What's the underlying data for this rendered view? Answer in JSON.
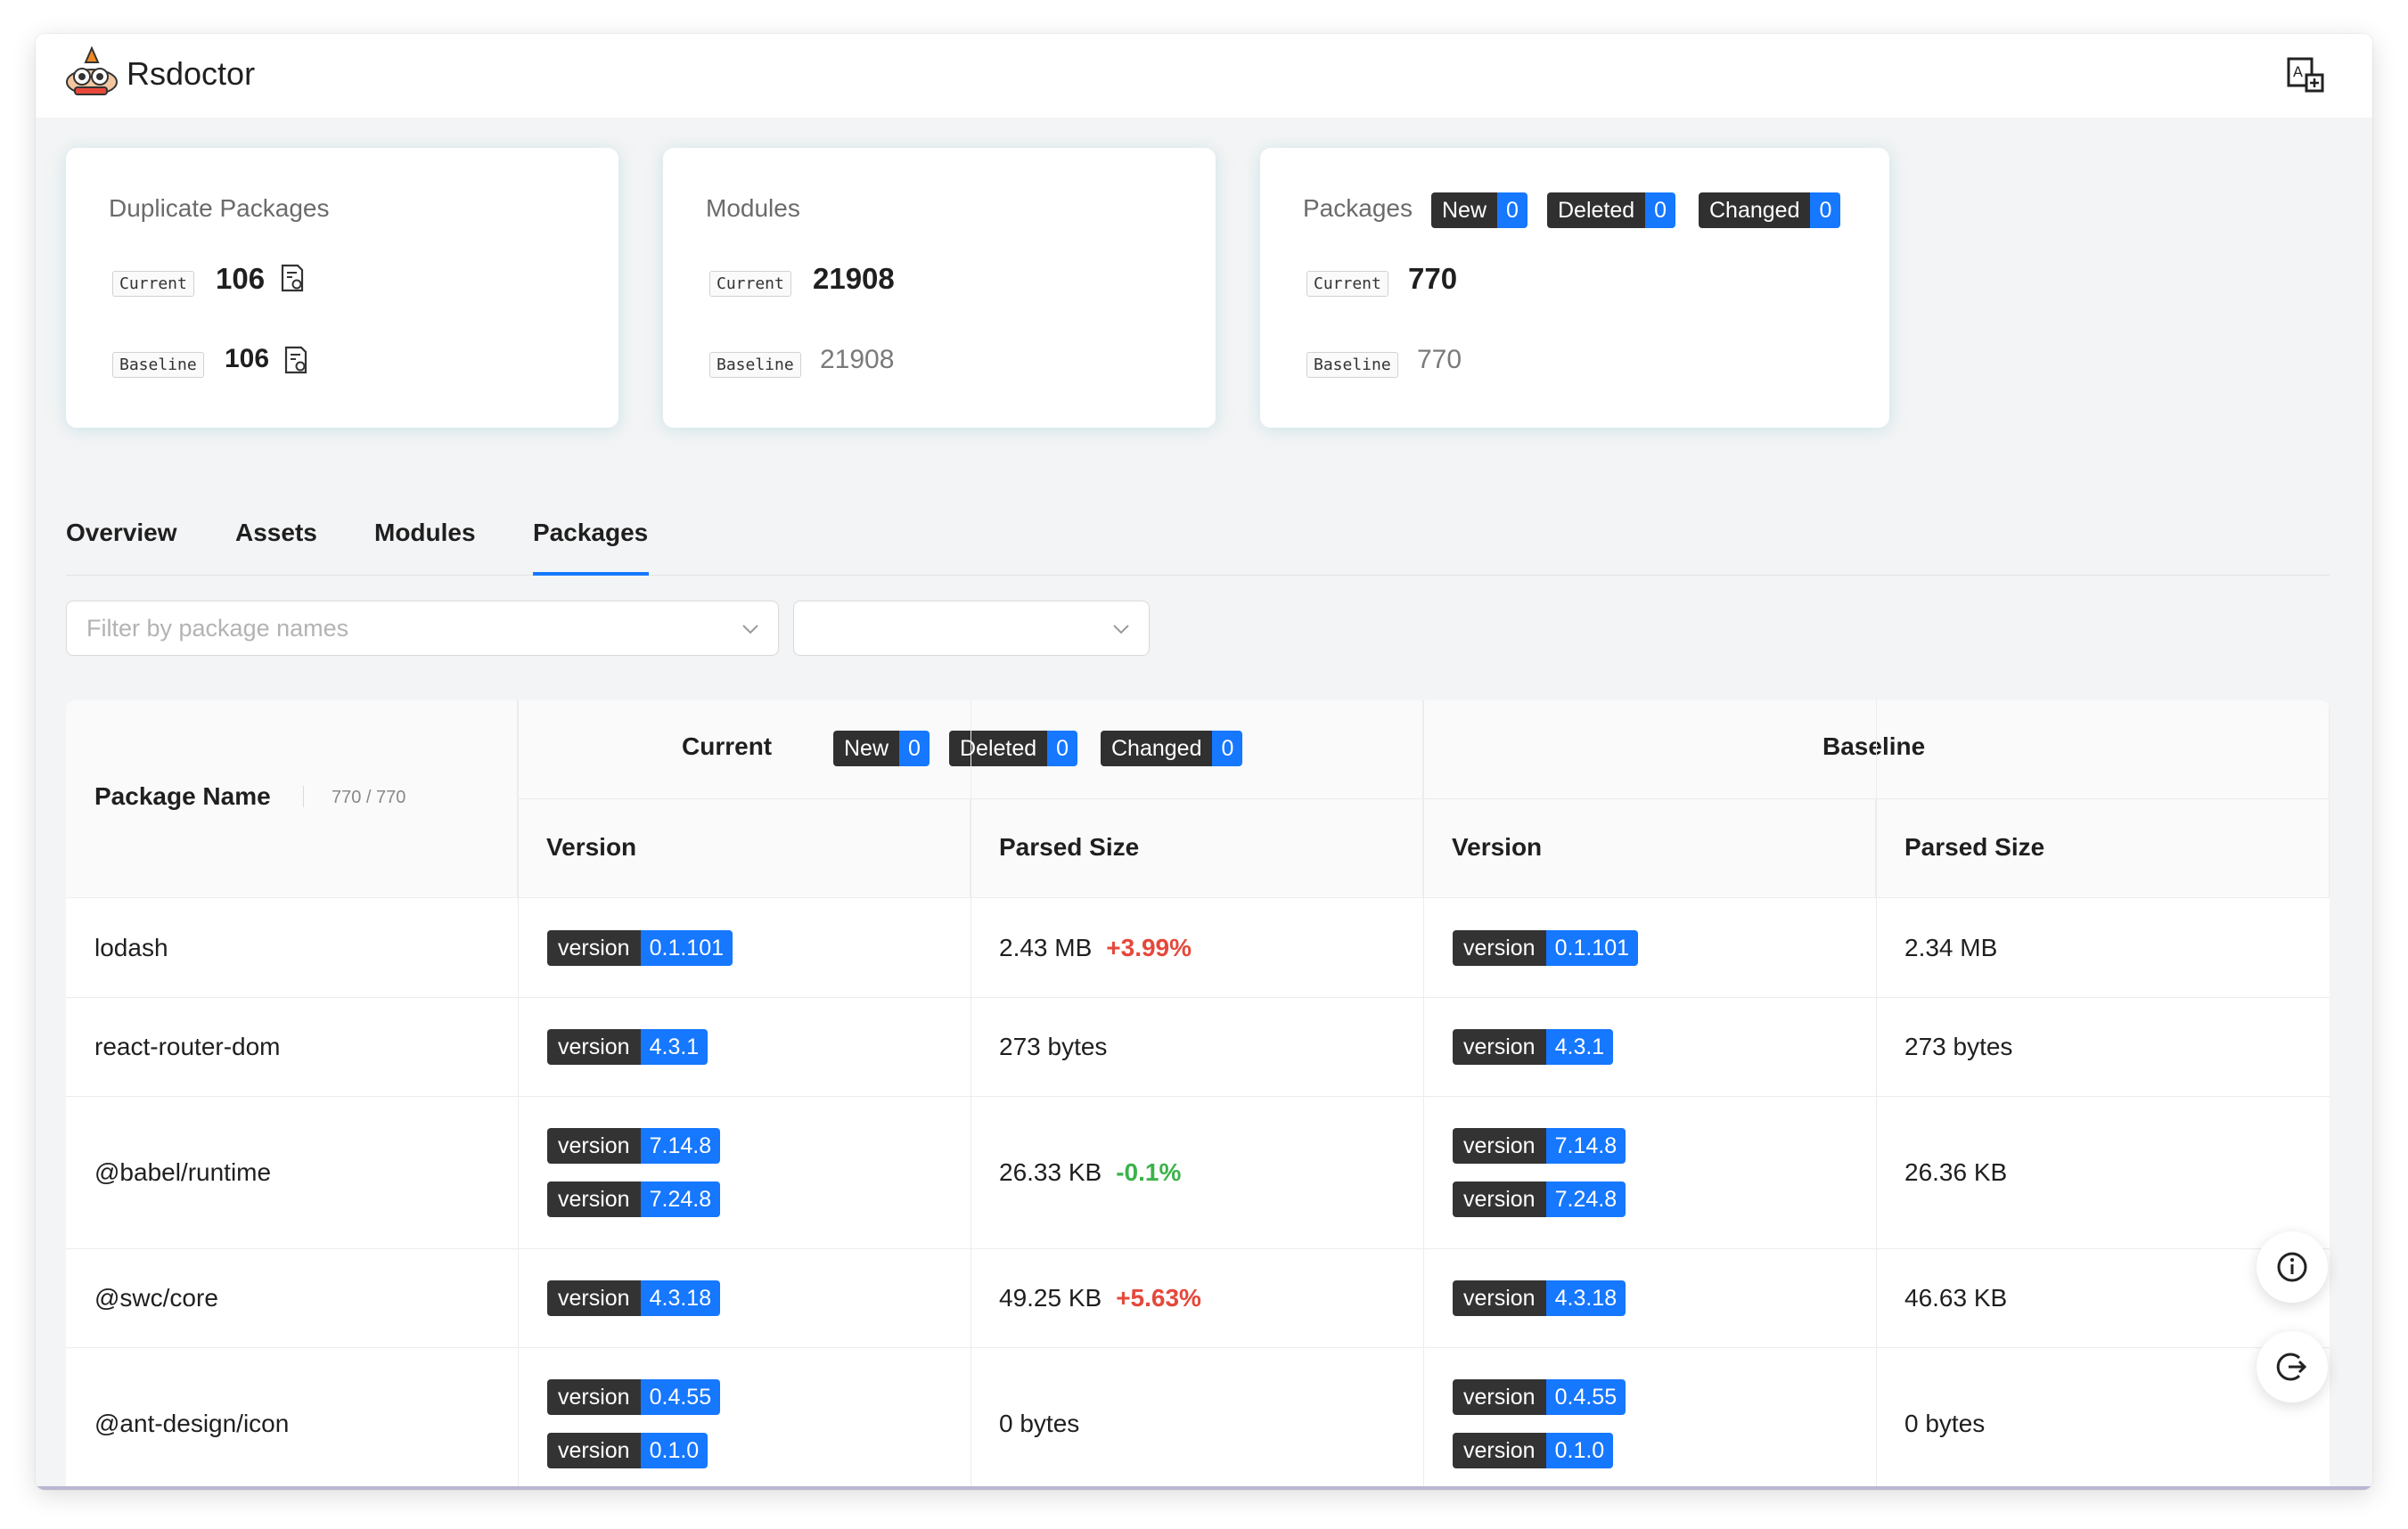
{
  "app": {
    "title": "Rsdoctor"
  },
  "cards": {
    "duplicate": {
      "title": "Duplicate Packages",
      "current_label": "Current",
      "current_value": "106",
      "baseline_label": "Baseline",
      "baseline_value": "106"
    },
    "modules": {
      "title": "Modules",
      "current_label": "Current",
      "current_value": "21908",
      "baseline_label": "Baseline",
      "baseline_value": "21908"
    },
    "packages": {
      "title": "Packages",
      "badges": [
        {
          "label": "New",
          "count": "0"
        },
        {
          "label": "Deleted",
          "count": "0"
        },
        {
          "label": "Changed",
          "count": "0"
        }
      ],
      "current_label": "Current",
      "current_value": "770",
      "baseline_label": "Baseline",
      "baseline_value": "770"
    }
  },
  "tabs": [
    {
      "label": "Overview"
    },
    {
      "label": "Assets"
    },
    {
      "label": "Modules"
    },
    {
      "label": "Packages"
    }
  ],
  "active_tab": "Packages",
  "filters": {
    "package_placeholder": "Filter by package names",
    "second_placeholder": ""
  },
  "table": {
    "package_name_header": "Package Name",
    "package_count": "770 / 770",
    "current_header": "Current",
    "current_badges": [
      {
        "label": "New",
        "count": "0"
      },
      {
        "label": "Deleted",
        "count": "0"
      },
      {
        "label": "Changed",
        "count": "0"
      }
    ],
    "baseline_header": "Baseline",
    "version_header": "Version",
    "size_header": "Parsed Size",
    "version_key": "version",
    "rows": [
      {
        "name": "lodash",
        "current_versions": [
          "0.1.101"
        ],
        "current_size": "2.43 MB",
        "change": "+3.99%",
        "change_dir": "up",
        "baseline_versions": [
          "0.1.101"
        ],
        "baseline_size": "2.34 MB"
      },
      {
        "name": "react-router-dom",
        "current_versions": [
          "4.3.1"
        ],
        "current_size": "273 bytes",
        "change": "",
        "change_dir": "",
        "baseline_versions": [
          "4.3.1"
        ],
        "baseline_size": "273 bytes"
      },
      {
        "name": "@babel/runtime",
        "current_versions": [
          "7.14.8",
          "7.24.8"
        ],
        "current_size": "26.33 KB",
        "change": "-0.1%",
        "change_dir": "down",
        "baseline_versions": [
          "7.14.8",
          "7.24.8"
        ],
        "baseline_size": "26.36 KB"
      },
      {
        "name": "@swc/core",
        "current_versions": [
          "4.3.18"
        ],
        "current_size": "49.25 KB",
        "change": "+5.63%",
        "change_dir": "up",
        "baseline_versions": [
          "4.3.18"
        ],
        "baseline_size": "46.63 KB"
      },
      {
        "name": "@ant-design/icon",
        "current_versions": [
          "0.4.55",
          "0.1.0"
        ],
        "current_size": "0 bytes",
        "change": "",
        "change_dir": "",
        "baseline_versions": [
          "0.4.55",
          "0.1.0"
        ],
        "baseline_size": "0 bytes"
      }
    ]
  },
  "colors": {
    "accent": "#1677ff",
    "tag_dark": "#303030",
    "increase": "#e5483b",
    "decrease": "#3bb34a"
  }
}
